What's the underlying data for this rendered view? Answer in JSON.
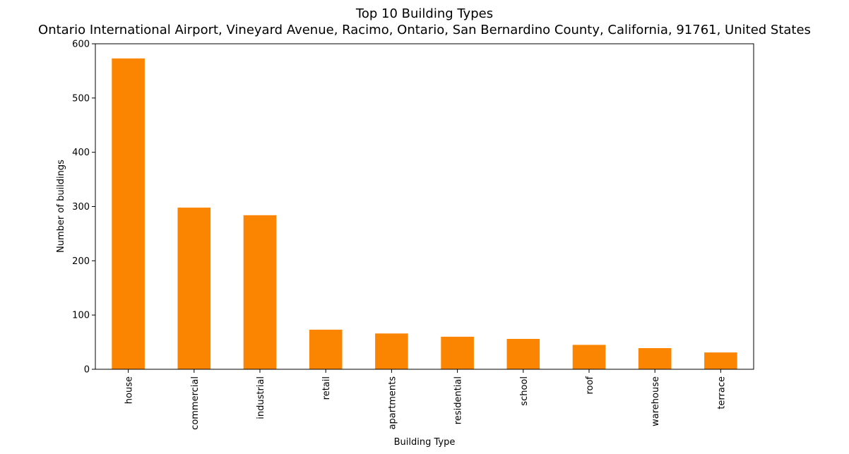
{
  "chart_data": {
    "type": "bar",
    "title": "Top 10 Building Types",
    "subtitle": "Ontario International Airport, Vineyard Avenue, Racimo, Ontario, San Bernardino County, California, 91761, United States",
    "xlabel": "Building Type",
    "ylabel": "Number of buildings",
    "categories": [
      "house",
      "commercial",
      "industrial",
      "retail",
      "apartments",
      "residential",
      "school",
      "roof",
      "warehouse",
      "terrace"
    ],
    "values": [
      573,
      298,
      284,
      73,
      66,
      60,
      56,
      45,
      39,
      31
    ],
    "ylim": [
      0,
      600
    ],
    "yticks": [
      0,
      100,
      200,
      300,
      400,
      500,
      600
    ],
    "bar_color": "#fb8500",
    "grid": false,
    "legend": "none"
  }
}
